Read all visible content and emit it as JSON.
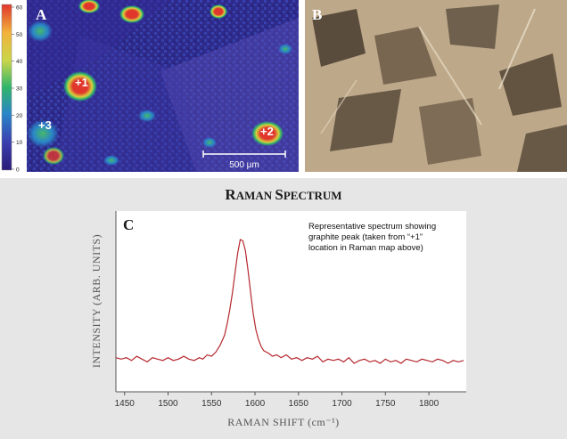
{
  "figure": {
    "panel_a_label": "A",
    "panel_b_label": "B",
    "panel_c_label": "C",
    "title_first": "R",
    "title_rest": "AMAN",
    "title_first2": "S",
    "title_rest2": "PECTRUM"
  },
  "raman_map": {
    "colorbar_ticks": [
      "0",
      "10",
      "20",
      "30",
      "40",
      "50",
      "60"
    ],
    "colorbar_colors": [
      "#2b1c78",
      "#3a3fb0",
      "#2a86c8",
      "#30b56a",
      "#c9d64a",
      "#f2b23a",
      "#e0362c"
    ],
    "markers": [
      {
        "label": "+1"
      },
      {
        "label": "+2"
      },
      {
        "label": "+3"
      }
    ],
    "scale_bar_label": "500 µm"
  },
  "chart_data": {
    "type": "line",
    "title": "Raman Spectrum",
    "xlabel": "RAMAN SHIFT (cm⁻¹)",
    "ylabel": "INTENSITY (ARB. UNITS)",
    "xlim": [
      1440,
      1843
    ],
    "ylim": [
      0,
      100
    ],
    "xticks": [
      1450,
      1500,
      1550,
      1600,
      1650,
      1700,
      1750,
      1800
    ],
    "annotation": "Representative spectrum showing graphite peak (taken from “+1” location in Raman map above)",
    "annotation_lines": [
      "Representative spectrum showing",
      "graphite peak (taken from “+1”",
      "location in Raman map above)"
    ],
    "color": "#b5282e",
    "series": [
      {
        "x": [
          1440,
          1446,
          1452,
          1458,
          1464,
          1470,
          1476,
          1482,
          1488,
          1494,
          1500,
          1506,
          1512,
          1518,
          1524,
          1530,
          1536,
          1540,
          1545,
          1550,
          1555,
          1560,
          1565,
          1568,
          1571,
          1574,
          1577,
          1580,
          1583,
          1586,
          1589,
          1592,
          1595,
          1598,
          1601,
          1604,
          1607,
          1610,
          1613,
          1616,
          1620,
          1625,
          1630,
          1636,
          1642,
          1648,
          1654,
          1660,
          1666,
          1672,
          1678,
          1684,
          1690,
          1696,
          1702,
          1708,
          1714,
          1720,
          1726,
          1732,
          1738,
          1744,
          1750,
          1756,
          1762,
          1768,
          1774,
          1780,
          1786,
          1792,
          1798,
          1804,
          1810,
          1816,
          1822,
          1828,
          1834,
          1840
        ],
        "y": [
          4,
          3,
          4,
          2,
          5,
          3,
          1,
          4,
          3,
          2,
          4,
          2,
          3,
          5,
          3,
          2,
          4,
          3,
          6,
          5,
          8,
          13,
          20,
          28,
          38,
          50,
          64,
          78,
          88,
          87,
          80,
          66,
          50,
          35,
          24,
          17,
          12,
          9,
          8,
          7,
          5,
          6,
          4,
          6,
          3,
          4,
          2,
          4,
          3,
          5,
          1,
          3,
          2,
          3,
          1,
          4,
          0,
          2,
          3,
          1,
          2,
          0,
          3,
          1,
          2,
          0,
          3,
          2,
          1,
          3,
          2,
          1,
          3,
          2,
          0,
          2,
          1,
          2
        ]
      }
    ]
  }
}
